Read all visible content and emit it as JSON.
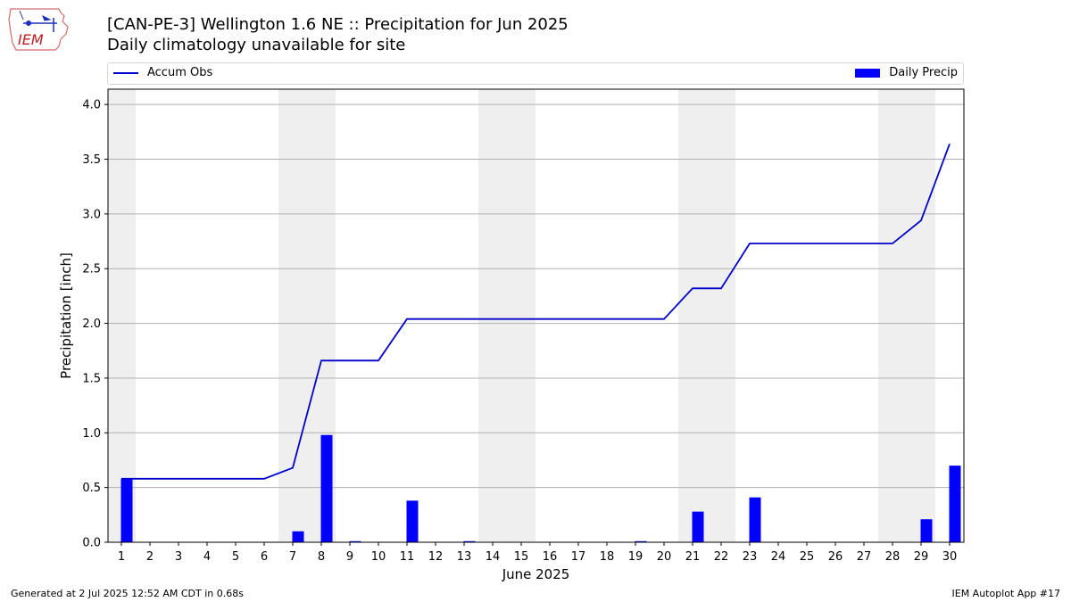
{
  "header": {
    "title": "[CAN-PE-3] Wellington 1.6 NE :: Precipitation for Jun 2025",
    "subtitle": "Daily climatology unavailable for site"
  },
  "logo": {
    "text": "IEM",
    "icon": "iem-iowa-logo"
  },
  "legend": {
    "line_label": "Accum Obs",
    "bar_label": "Daily Precip",
    "placement": "top"
  },
  "chart_data": {
    "type": "bar",
    "xlabel": "June 2025",
    "ylabel": "Precipitation [inch]",
    "categories": [
      "1",
      "2",
      "3",
      "4",
      "5",
      "6",
      "7",
      "8",
      "9",
      "10",
      "11",
      "12",
      "13",
      "14",
      "15",
      "16",
      "17",
      "18",
      "19",
      "20",
      "21",
      "22",
      "23",
      "24",
      "25",
      "26",
      "27",
      "28",
      "29",
      "30"
    ],
    "ylim": [
      0,
      4.14
    ],
    "yticks": [
      "0.0",
      "0.5",
      "1.0",
      "1.5",
      "2.0",
      "2.5",
      "3.0",
      "3.5",
      "4.0"
    ],
    "grid": true,
    "weekend_shading": [
      [
        1,
        1
      ],
      [
        7,
        8
      ],
      [
        14,
        15
      ],
      [
        21,
        22
      ],
      [
        28,
        29
      ]
    ],
    "series": [
      {
        "name": "Daily Precip",
        "type": "bar",
        "color": "#0000ff",
        "values": [
          0.58,
          0,
          0,
          0,
          0,
          0,
          0.1,
          0.98,
          0.01,
          0,
          0.38,
          0,
          0.01,
          0,
          0,
          0,
          0,
          0,
          0.01,
          0,
          0.28,
          0,
          0.41,
          0,
          0,
          0,
          0,
          0,
          0.21,
          0.7
        ]
      },
      {
        "name": "Accum Obs",
        "type": "line",
        "color": "#0000cc",
        "values": [
          0.58,
          0.58,
          0.58,
          0.58,
          0.58,
          0.58,
          0.68,
          1.66,
          1.66,
          1.66,
          2.04,
          2.04,
          2.04,
          2.04,
          2.04,
          2.04,
          2.04,
          2.04,
          2.04,
          2.04,
          2.32,
          2.32,
          2.73,
          2.73,
          2.73,
          2.73,
          2.73,
          2.73,
          2.94,
          3.64
        ]
      }
    ]
  },
  "footer": {
    "generated": "Generated at 2 Jul 2025 12:52 AM CDT in 0.68s",
    "app": "IEM Autoplot App #17"
  }
}
